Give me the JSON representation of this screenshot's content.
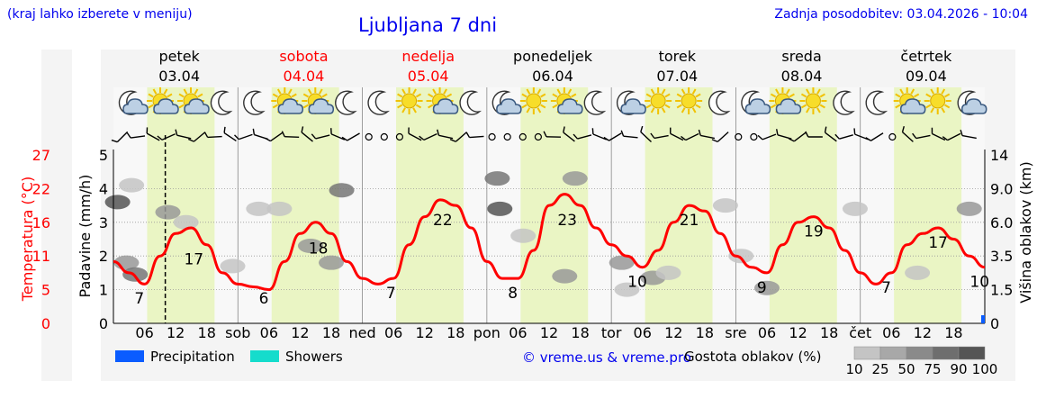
{
  "header": {
    "hint": "(kraj lahko izberete v meniju)",
    "title": "Ljubljana 7 dni",
    "updated": "Zadnja posodobitev: 03.04.2026 - 10:04"
  },
  "days": [
    {
      "name": "petek",
      "date": "03.04",
      "weekend": false,
      "short": ""
    },
    {
      "name": "sobota",
      "date": "04.04",
      "weekend": true,
      "short": "sob"
    },
    {
      "name": "nedelja",
      "date": "05.04",
      "weekend": true,
      "short": "ned"
    },
    {
      "name": "ponedeljek",
      "date": "06.04",
      "weekend": false,
      "short": "pon"
    },
    {
      "name": "torek",
      "date": "07.04",
      "weekend": false,
      "short": "tor"
    },
    {
      "name": "sreda",
      "date": "08.04",
      "weekend": false,
      "short": "sre"
    },
    {
      "name": "četrtek",
      "date": "09.04",
      "weekend": false,
      "short": "čet"
    }
  ],
  "hour_ticks": [
    "06",
    "12",
    "18"
  ],
  "weather_icons": [
    [
      "moon-cloud-icon",
      "sun-cloud-icon",
      "sun-cloud-icon",
      "moon-icon"
    ],
    [
      "moon-icon",
      "sun-cloud-icon",
      "sun-cloud-icon",
      "moon-icon"
    ],
    [
      "moon-icon",
      "sun-icon",
      "sun-cloud-icon",
      "moon-icon"
    ],
    [
      "moon-cloud-icon",
      "sun-icon",
      "sun-cloud-icon",
      "moon-icon"
    ],
    [
      "moon-cloud-icon",
      "sun-icon",
      "sun-icon",
      "moon-icon"
    ],
    [
      "moon-cloud-icon",
      "sun-cloud-icon",
      "sun-icon",
      "moon-icon"
    ],
    [
      "moon-icon",
      "sun-cloud-icon",
      "sun-icon",
      "moon-cloud-icon"
    ]
  ],
  "axes": {
    "temp_label": "Temperatura (°C)",
    "temp_ticks": [
      "27",
      "22",
      "16",
      "11",
      "5",
      "0"
    ],
    "precip_label": "Padavine (mm/h)",
    "precip_ticks": [
      "5",
      "4",
      "3",
      "2",
      "1",
      "0"
    ],
    "cloud_label": "Višina oblakov (km)",
    "cloud_ticks": [
      "14",
      "9.0",
      "6.0",
      "3.5",
      "1.5",
      "0"
    ]
  },
  "chart_data": {
    "type": "line",
    "x_unit": "hours since 03.04 00:00",
    "series": [
      {
        "name": "",
        "color": "#ff0000",
        "x": [
          0,
          3,
          6,
          9,
          12,
          15,
          18,
          21,
          24,
          27,
          30,
          33,
          36,
          39,
          42,
          45,
          48,
          51,
          54,
          57,
          60,
          63,
          66,
          69,
          72,
          75,
          78,
          81,
          84,
          87,
          90,
          93,
          96,
          99,
          102,
          105,
          108,
          111,
          114,
          117,
          120,
          123,
          126,
          129,
          132,
          135,
          138,
          141,
          144,
          147,
          150,
          153,
          156,
          159,
          162,
          165,
          168
        ],
        "values": [
          11,
          9,
          7,
          12,
          16,
          17,
          14,
          9,
          7,
          6.5,
          6,
          11,
          16,
          18,
          16,
          11,
          8,
          7,
          8,
          14,
          19,
          22,
          21,
          17,
          11,
          8,
          8,
          13,
          21,
          23,
          21,
          17,
          14,
          12,
          10,
          13,
          18,
          21,
          20,
          16,
          12,
          10,
          9,
          14,
          18,
          19,
          17,
          13,
          9,
          7,
          9,
          14,
          16,
          17,
          15,
          12,
          10
        ]
      }
    ],
    "temp_labels": [
      {
        "x": 5,
        "value": "7"
      },
      {
        "x": 15.5,
        "value": "17"
      },
      {
        "x": 29,
        "value": "6"
      },
      {
        "x": 39.5,
        "value": "18"
      },
      {
        "x": 53.5,
        "value": "7"
      },
      {
        "x": 63.5,
        "value": "22"
      },
      {
        "x": 77,
        "value": "8"
      },
      {
        "x": 87.5,
        "value": "23"
      },
      {
        "x": 101,
        "value": "10"
      },
      {
        "x": 111,
        "value": "21"
      },
      {
        "x": 125,
        "value": "9"
      },
      {
        "x": 135,
        "value": "19"
      },
      {
        "x": 149,
        "value": "7"
      },
      {
        "x": 159,
        "value": "17"
      },
      {
        "x": 167,
        "value": "10"
      }
    ],
    "ylim_temp": [
      0,
      30
    ],
    "ylim_precip": [
      0,
      5
    ],
    "now_marker_x": 10,
    "clouds": [
      {
        "x": 0.8,
        "y": 3.6,
        "value": 90
      },
      {
        "x": 3.5,
        "y": 4.1,
        "value": 25
      },
      {
        "x": 2.5,
        "y": 1.8,
        "value": 50
      },
      {
        "x": 4.2,
        "y": 1.45,
        "value": 75
      },
      {
        "x": 10.5,
        "y": 3.3,
        "value": 50
      },
      {
        "x": 14,
        "y": 3.0,
        "value": 25
      },
      {
        "x": 23,
        "y": 1.7,
        "value": 25
      },
      {
        "x": 28,
        "y": 3.4,
        "value": 25
      },
      {
        "x": 32,
        "y": 3.4,
        "value": 25
      },
      {
        "x": 38,
        "y": 2.3,
        "value": 50
      },
      {
        "x": 42,
        "y": 1.8,
        "value": 50
      },
      {
        "x": 44,
        "y": 3.95,
        "value": 75
      },
      {
        "x": 74,
        "y": 4.3,
        "value": 75
      },
      {
        "x": 74.5,
        "y": 3.4,
        "value": 90
      },
      {
        "x": 79,
        "y": 2.6,
        "value": 25
      },
      {
        "x": 87,
        "y": 1.4,
        "value": 50
      },
      {
        "x": 89,
        "y": 4.3,
        "value": 50
      },
      {
        "x": 98,
        "y": 1.8,
        "value": 50
      },
      {
        "x": 104,
        "y": 1.35,
        "value": 50
      },
      {
        "x": 107,
        "y": 1.5,
        "value": 25
      },
      {
        "x": 99,
        "y": 1.0,
        "value": 25
      },
      {
        "x": 126,
        "y": 1.05,
        "value": 50
      },
      {
        "x": 155,
        "y": 1.5,
        "value": 25
      },
      {
        "x": 165,
        "y": 3.4,
        "value": 50
      },
      {
        "x": 143,
        "y": 3.4,
        "value": 25
      },
      {
        "x": 118,
        "y": 3.5,
        "value": 25
      },
      {
        "x": 121,
        "y": 2.0,
        "value": 25
      }
    ]
  },
  "legend": {
    "precipitation": "Precipitation",
    "showers": "Showers",
    "precipitation_color": "#0a5cff",
    "showers_color": "#15dccc",
    "credit": "© vreme.us & vreme.pro",
    "cloud_title": "Gostota oblakov (%)",
    "cloud_scale": [
      "10",
      "25",
      "50",
      "75",
      "90",
      "100"
    ]
  },
  "colors": {
    "daylight": "#eaf5c4",
    "night": "#f8f8f8",
    "temp_axis": "#ff0000",
    "link": "#0000ee"
  }
}
